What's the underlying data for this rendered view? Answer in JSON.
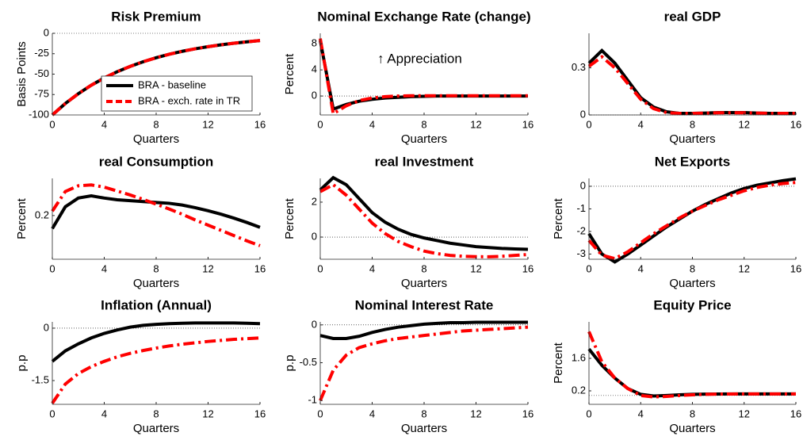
{
  "chart_data": [
    {
      "type": "line",
      "title": "Risk Premium",
      "xlabel": "Quarters",
      "ylabel": "Basis Points",
      "x": [
        0,
        1,
        2,
        3,
        4,
        5,
        6,
        7,
        8,
        9,
        10,
        11,
        12,
        13,
        14,
        15,
        16
      ],
      "xlim": [
        0,
        16
      ],
      "xticks": [
        0,
        4,
        8,
        12,
        16
      ],
      "ylim": [
        -100,
        0
      ],
      "yticks": [
        -100,
        -75,
        -50,
        -25,
        0
      ],
      "zeroline": true,
      "legend": "lower right",
      "series": [
        {
          "name": "BRA - baseline",
          "color": "#000000",
          "linestyle": "solid",
          "values": [
            -100,
            -86,
            -74,
            -63.6,
            -54.7,
            -47,
            -40.5,
            -34.8,
            -29.9,
            -25.7,
            -22.1,
            -19,
            -16.4,
            -14.1,
            -12.1,
            -10.4,
            -8.9
          ]
        },
        {
          "name": "BRA - exch. rate in TR",
          "color": "#ff0000",
          "linestyle": "dashdot",
          "values": [
            -100,
            -86,
            -74,
            -63.6,
            -54.7,
            -47,
            -40.5,
            -34.8,
            -29.9,
            -25.7,
            -22.1,
            -19,
            -16.4,
            -14.1,
            -12.1,
            -10.4,
            -8.9
          ]
        }
      ]
    },
    {
      "type": "line",
      "title": "Nominal Exchange Rate (change)",
      "xlabel": "Quarters",
      "ylabel": "Percent",
      "annotation": "↑ Appreciation",
      "x": [
        0,
        1,
        2,
        3,
        4,
        5,
        6,
        7,
        8,
        9,
        10,
        11,
        12,
        13,
        14,
        15,
        16
      ],
      "xlim": [
        0,
        16
      ],
      "xticks": [
        0,
        4,
        8,
        12,
        16
      ],
      "ylim": [
        -2.9,
        9.6
      ],
      "yticks": [
        0,
        4,
        8
      ],
      "zeroline": true,
      "series": [
        {
          "color": "#000000",
          "linestyle": "solid",
          "values": [
            8.5,
            -2,
            -1.3,
            -0.8,
            -0.5,
            -0.3,
            -0.2,
            -0.1,
            -0.05,
            0,
            0,
            0,
            0,
            0,
            0,
            0,
            0
          ]
        },
        {
          "color": "#ff0000",
          "linestyle": "dashdot",
          "values": [
            8.8,
            -2.7,
            -1.5,
            -0.7,
            -0.3,
            -0.1,
            0,
            0.05,
            0.05,
            0.05,
            0.05,
            0.05,
            0.05,
            0.05,
            0.05,
            0.05,
            0.05
          ]
        }
      ]
    },
    {
      "type": "line",
      "title": "real GDP",
      "xlabel": "Quarters",
      "x": [
        0,
        1,
        2,
        3,
        4,
        5,
        6,
        7,
        8,
        9,
        10,
        11,
        12,
        13,
        14,
        15,
        16
      ],
      "xlim": [
        0,
        16
      ],
      "xticks": [
        0,
        4,
        8,
        12,
        16
      ],
      "ylim": [
        0,
        0.52
      ],
      "yticks": [
        0,
        0.3
      ],
      "zeroline": true,
      "series": [
        {
          "color": "#000000",
          "linestyle": "solid",
          "values": [
            0.33,
            0.41,
            0.33,
            0.22,
            0.11,
            0.05,
            0.02,
            0.01,
            0.01,
            0.012,
            0.015,
            0.015,
            0.015,
            0.012,
            0.01,
            0.01,
            0.01
          ]
        },
        {
          "color": "#ff0000",
          "linestyle": "dashdot",
          "values": [
            0.31,
            0.37,
            0.3,
            0.2,
            0.1,
            0.04,
            0.015,
            0.01,
            0.01,
            0.012,
            0.014,
            0.014,
            0.014,
            0.012,
            0.01,
            0.01,
            0.01
          ]
        }
      ]
    },
    {
      "type": "line",
      "title": "real Consumption",
      "xlabel": "Quarters",
      "ylabel": "Percent",
      "x": [
        0,
        1,
        2,
        3,
        4,
        5,
        6,
        7,
        8,
        9,
        10,
        11,
        12,
        13,
        14,
        15,
        16
      ],
      "xlim": [
        0,
        16
      ],
      "xticks": [
        0,
        4,
        8,
        12,
        16
      ],
      "ylim": [
        0.1,
        0.285
      ],
      "yticks": [
        0.2
      ],
      "zeroline": true,
      "series": [
        {
          "color": "#000000",
          "linestyle": "solid",
          "values": [
            0.17,
            0.22,
            0.24,
            0.245,
            0.24,
            0.236,
            0.234,
            0.232,
            0.23,
            0.228,
            0.224,
            0.218,
            0.211,
            0.203,
            0.194,
            0.184,
            0.173
          ]
        },
        {
          "color": "#ff0000",
          "linestyle": "dashdot",
          "values": [
            0.21,
            0.255,
            0.268,
            0.27,
            0.265,
            0.256,
            0.247,
            0.237,
            0.226,
            0.215,
            0.203,
            0.19,
            0.178,
            0.166,
            0.154,
            0.142,
            0.131
          ]
        }
      ]
    },
    {
      "type": "line",
      "title": "real Investment",
      "xlabel": "Quarters",
      "ylabel": "Percent",
      "x": [
        0,
        1,
        2,
        3,
        4,
        5,
        6,
        7,
        8,
        9,
        10,
        11,
        12,
        13,
        14,
        15,
        16
      ],
      "xlim": [
        0,
        16
      ],
      "xticks": [
        0,
        4,
        8,
        12,
        16
      ],
      "ylim": [
        -1.27,
        3.36
      ],
      "yticks": [
        0,
        2
      ],
      "zeroline": true,
      "series": [
        {
          "color": "#000000",
          "linestyle": "solid",
          "values": [
            2.7,
            3.4,
            3,
            2.2,
            1.4,
            0.85,
            0.45,
            0.15,
            -0.05,
            -0.2,
            -0.35,
            -0.45,
            -0.55,
            -0.6,
            -0.65,
            -0.68,
            -0.7
          ]
        },
        {
          "color": "#ff0000",
          "linestyle": "dashdot",
          "values": [
            2.6,
            3,
            2.4,
            1.6,
            0.8,
            0.2,
            -0.25,
            -0.55,
            -0.8,
            -0.95,
            -1.05,
            -1.1,
            -1.12,
            -1.13,
            -1.1,
            -1.05,
            -1
          ]
        }
      ]
    },
    {
      "type": "line",
      "title": "Net Exports",
      "xlabel": "Quarters",
      "ylabel": "Percent",
      "x": [
        0,
        1,
        2,
        3,
        4,
        5,
        6,
        7,
        8,
        9,
        10,
        11,
        12,
        13,
        14,
        15,
        16
      ],
      "xlim": [
        0,
        16
      ],
      "xticks": [
        0,
        4,
        8,
        12,
        16
      ],
      "ylim": [
        -3.23,
        0.35
      ],
      "yticks": [
        -3,
        -2,
        -1,
        0
      ],
      "zeroline": true,
      "series": [
        {
          "color": "#000000",
          "linestyle": "solid",
          "values": [
            -2.1,
            -3,
            -3.35,
            -3,
            -2.6,
            -2.2,
            -1.8,
            -1.45,
            -1.1,
            -0.8,
            -0.55,
            -0.3,
            -0.1,
            0.05,
            0.15,
            0.25,
            0.33
          ]
        },
        {
          "color": "#ff0000",
          "linestyle": "dashdot",
          "values": [
            -2.4,
            -3.05,
            -3.2,
            -2.9,
            -2.5,
            -2.1,
            -1.75,
            -1.4,
            -1.1,
            -0.85,
            -0.6,
            -0.4,
            -0.2,
            -0.05,
            0.05,
            0.12,
            0.17
          ]
        }
      ]
    },
    {
      "type": "line",
      "title": "Inflation (Annual)",
      "xlabel": "Quarters",
      "ylabel": "p.p",
      "x": [
        0,
        1,
        2,
        3,
        4,
        5,
        6,
        7,
        8,
        9,
        10,
        11,
        12,
        13,
        14,
        15,
        16
      ],
      "xlim": [
        0,
        16
      ],
      "xticks": [
        0,
        4,
        8,
        12,
        16
      ],
      "ylim": [
        -2.18,
        0.18
      ],
      "yticks": [
        -1.5,
        0
      ],
      "zeroline": true,
      "series": [
        {
          "color": "#000000",
          "linestyle": "solid",
          "values": [
            -0.95,
            -0.65,
            -0.45,
            -0.28,
            -0.15,
            -0.05,
            0.03,
            0.08,
            0.11,
            0.13,
            0.14,
            0.15,
            0.15,
            0.15,
            0.15,
            0.14,
            0.13
          ]
        },
        {
          "color": "#ff0000",
          "linestyle": "dashdot",
          "values": [
            -2.15,
            -1.6,
            -1.3,
            -1.1,
            -0.95,
            -0.82,
            -0.72,
            -0.64,
            -0.57,
            -0.51,
            -0.46,
            -0.42,
            -0.38,
            -0.35,
            -0.32,
            -0.3,
            -0.28
          ]
        }
      ]
    },
    {
      "type": "line",
      "title": "Nominal Interest Rate",
      "xlabel": "Quarters",
      "ylabel": "p.p",
      "x": [
        0,
        1,
        2,
        3,
        4,
        5,
        6,
        7,
        8,
        9,
        10,
        11,
        12,
        13,
        14,
        15,
        16
      ],
      "xlim": [
        0,
        16
      ],
      "xticks": [
        0,
        4,
        8,
        12,
        16
      ],
      "ylim": [
        -1.05,
        0.04
      ],
      "yticks": [
        -1,
        -0.5,
        0
      ],
      "zeroline": true,
      "series": [
        {
          "color": "#000000",
          "linestyle": "solid",
          "values": [
            -0.14,
            -0.18,
            -0.18,
            -0.15,
            -0.1,
            -0.06,
            -0.03,
            -0.01,
            0.01,
            0.02,
            0.03,
            0.03,
            0.035,
            0.035,
            0.035,
            0.035,
            0.035
          ]
        },
        {
          "color": "#ff0000",
          "linestyle": "dashdot",
          "values": [
            -1,
            -0.6,
            -0.4,
            -0.3,
            -0.25,
            -0.21,
            -0.18,
            -0.16,
            -0.14,
            -0.12,
            -0.1,
            -0.08,
            -0.07,
            -0.06,
            -0.05,
            -0.04,
            -0.03
          ]
        }
      ]
    },
    {
      "type": "line",
      "title": "Equity Price",
      "xlabel": "Quarters",
      "ylabel": "Percent",
      "x": [
        0,
        1,
        2,
        3,
        4,
        5,
        6,
        7,
        8,
        9,
        10,
        11,
        12,
        13,
        14,
        15,
        16
      ],
      "xlim": [
        0,
        16
      ],
      "xticks": [
        0,
        4,
        8,
        12,
        16
      ],
      "ylim": [
        -0.38,
        3.17
      ],
      "yticks": [
        0.2,
        1.6
      ],
      "zeroline": true,
      "series": [
        {
          "color": "#000000",
          "linestyle": "solid",
          "values": [
            2,
            1.3,
            0.75,
            0.3,
            0.05,
            -0.02,
            0,
            0.03,
            0.05,
            0.06,
            0.065,
            0.07,
            0.07,
            0.07,
            0.07,
            0.07,
            0.07
          ]
        },
        {
          "color": "#ff0000",
          "linestyle": "dashdot",
          "values": [
            2.75,
            1.45,
            0.75,
            0.3,
            0,
            -0.06,
            -0.04,
            0,
            0.03,
            0.05,
            0.06,
            0.065,
            0.07,
            0.07,
            0.07,
            0.07,
            0.07
          ]
        }
      ]
    }
  ]
}
